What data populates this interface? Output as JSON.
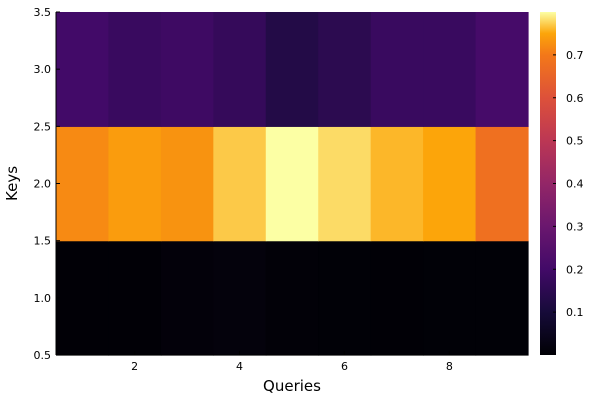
{
  "chart_data": {
    "type": "heatmap",
    "xlabel": "Queries",
    "ylabel": "Keys",
    "x": [
      1,
      2,
      3,
      4,
      5,
      6,
      7,
      8,
      9
    ],
    "y": [
      1,
      2,
      3
    ],
    "xlim": [
      0.5,
      9.5
    ],
    "ylim": [
      0.5,
      3.5
    ],
    "x_ticks": [
      2,
      4,
      6,
      8
    ],
    "y_ticks": [
      0.5,
      1.0,
      1.5,
      2.0,
      2.5,
      3.0,
      3.5
    ],
    "x_tick_labels": [
      "2",
      "4",
      "6",
      "8"
    ],
    "y_tick_labels": [
      "0.5",
      "1.0",
      "1.5",
      "2.0",
      "2.5",
      "3.0",
      "3.5"
    ],
    "values": [
      [
        0.004,
        0.003,
        0.012,
        0.016,
        0.008,
        0.006,
        0.004,
        0.005,
        0.006
      ],
      [
        0.72,
        0.74,
        0.73,
        0.77,
        0.8,
        0.78,
        0.76,
        0.75,
        0.68
      ],
      [
        0.2,
        0.18,
        0.19,
        0.17,
        0.13,
        0.15,
        0.18,
        0.18,
        0.21
      ]
    ],
    "colormap": "inferno",
    "colorbar": {
      "range": [
        0,
        0.8
      ],
      "ticks": [
        0.1,
        0.2,
        0.3,
        0.4,
        0.5,
        0.6,
        0.7
      ],
      "tick_labels": [
        "0.1",
        "0.2",
        "0.3",
        "0.4",
        "0.5",
        "0.6",
        "0.7"
      ]
    },
    "grid": false
  }
}
